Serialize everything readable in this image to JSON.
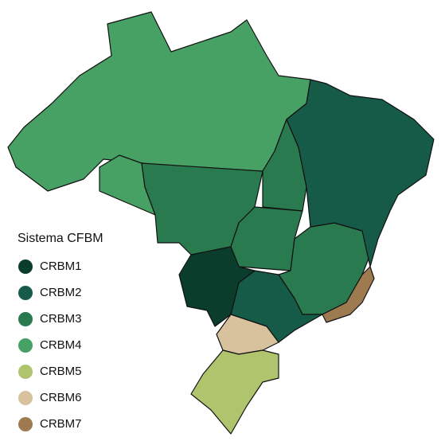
{
  "legend": {
    "title": "Sistema CFBM",
    "items": [
      {
        "name": "CRBM1",
        "color": "#0b3d2c"
      },
      {
        "name": "CRBM2",
        "color": "#165a48"
      },
      {
        "name": "CRBM3",
        "color": "#2a7a4f"
      },
      {
        "name": "CRBM4",
        "color": "#47a064"
      },
      {
        "name": "CRBM5",
        "color": "#b0c46e"
      },
      {
        "name": "CRBM6",
        "color": "#d7c29d"
      },
      {
        "name": "CRBM7",
        "color": "#9e7a50"
      }
    ]
  }
}
